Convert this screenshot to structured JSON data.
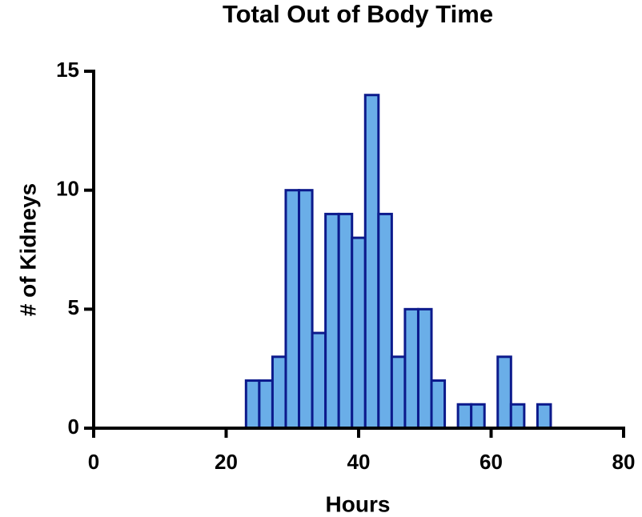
{
  "chart_data": {
    "type": "histogram",
    "title": "Total Out of Body Time",
    "x_label": "Hours",
    "y_label": "# of Kidneys",
    "bins": [
      23,
      25,
      27,
      29,
      31,
      33,
      35,
      37,
      39,
      41,
      43,
      45,
      47,
      49,
      51,
      53,
      55,
      57,
      59,
      61,
      63,
      65,
      67,
      69
    ],
    "values": [
      2,
      2,
      3,
      10,
      10,
      4,
      9,
      9,
      8,
      14,
      9,
      3,
      5,
      5,
      2,
      0,
      1,
      1,
      0,
      3,
      1,
      0,
      1
    ],
    "color": "#6aaee8",
    "edge_color": "#0c1a8c",
    "xlim": [
      0,
      80
    ],
    "xticks": [
      0,
      20,
      40,
      60,
      80
    ],
    "ylim": [
      0,
      15
    ],
    "yticks": [
      0,
      5,
      10,
      15
    ]
  }
}
